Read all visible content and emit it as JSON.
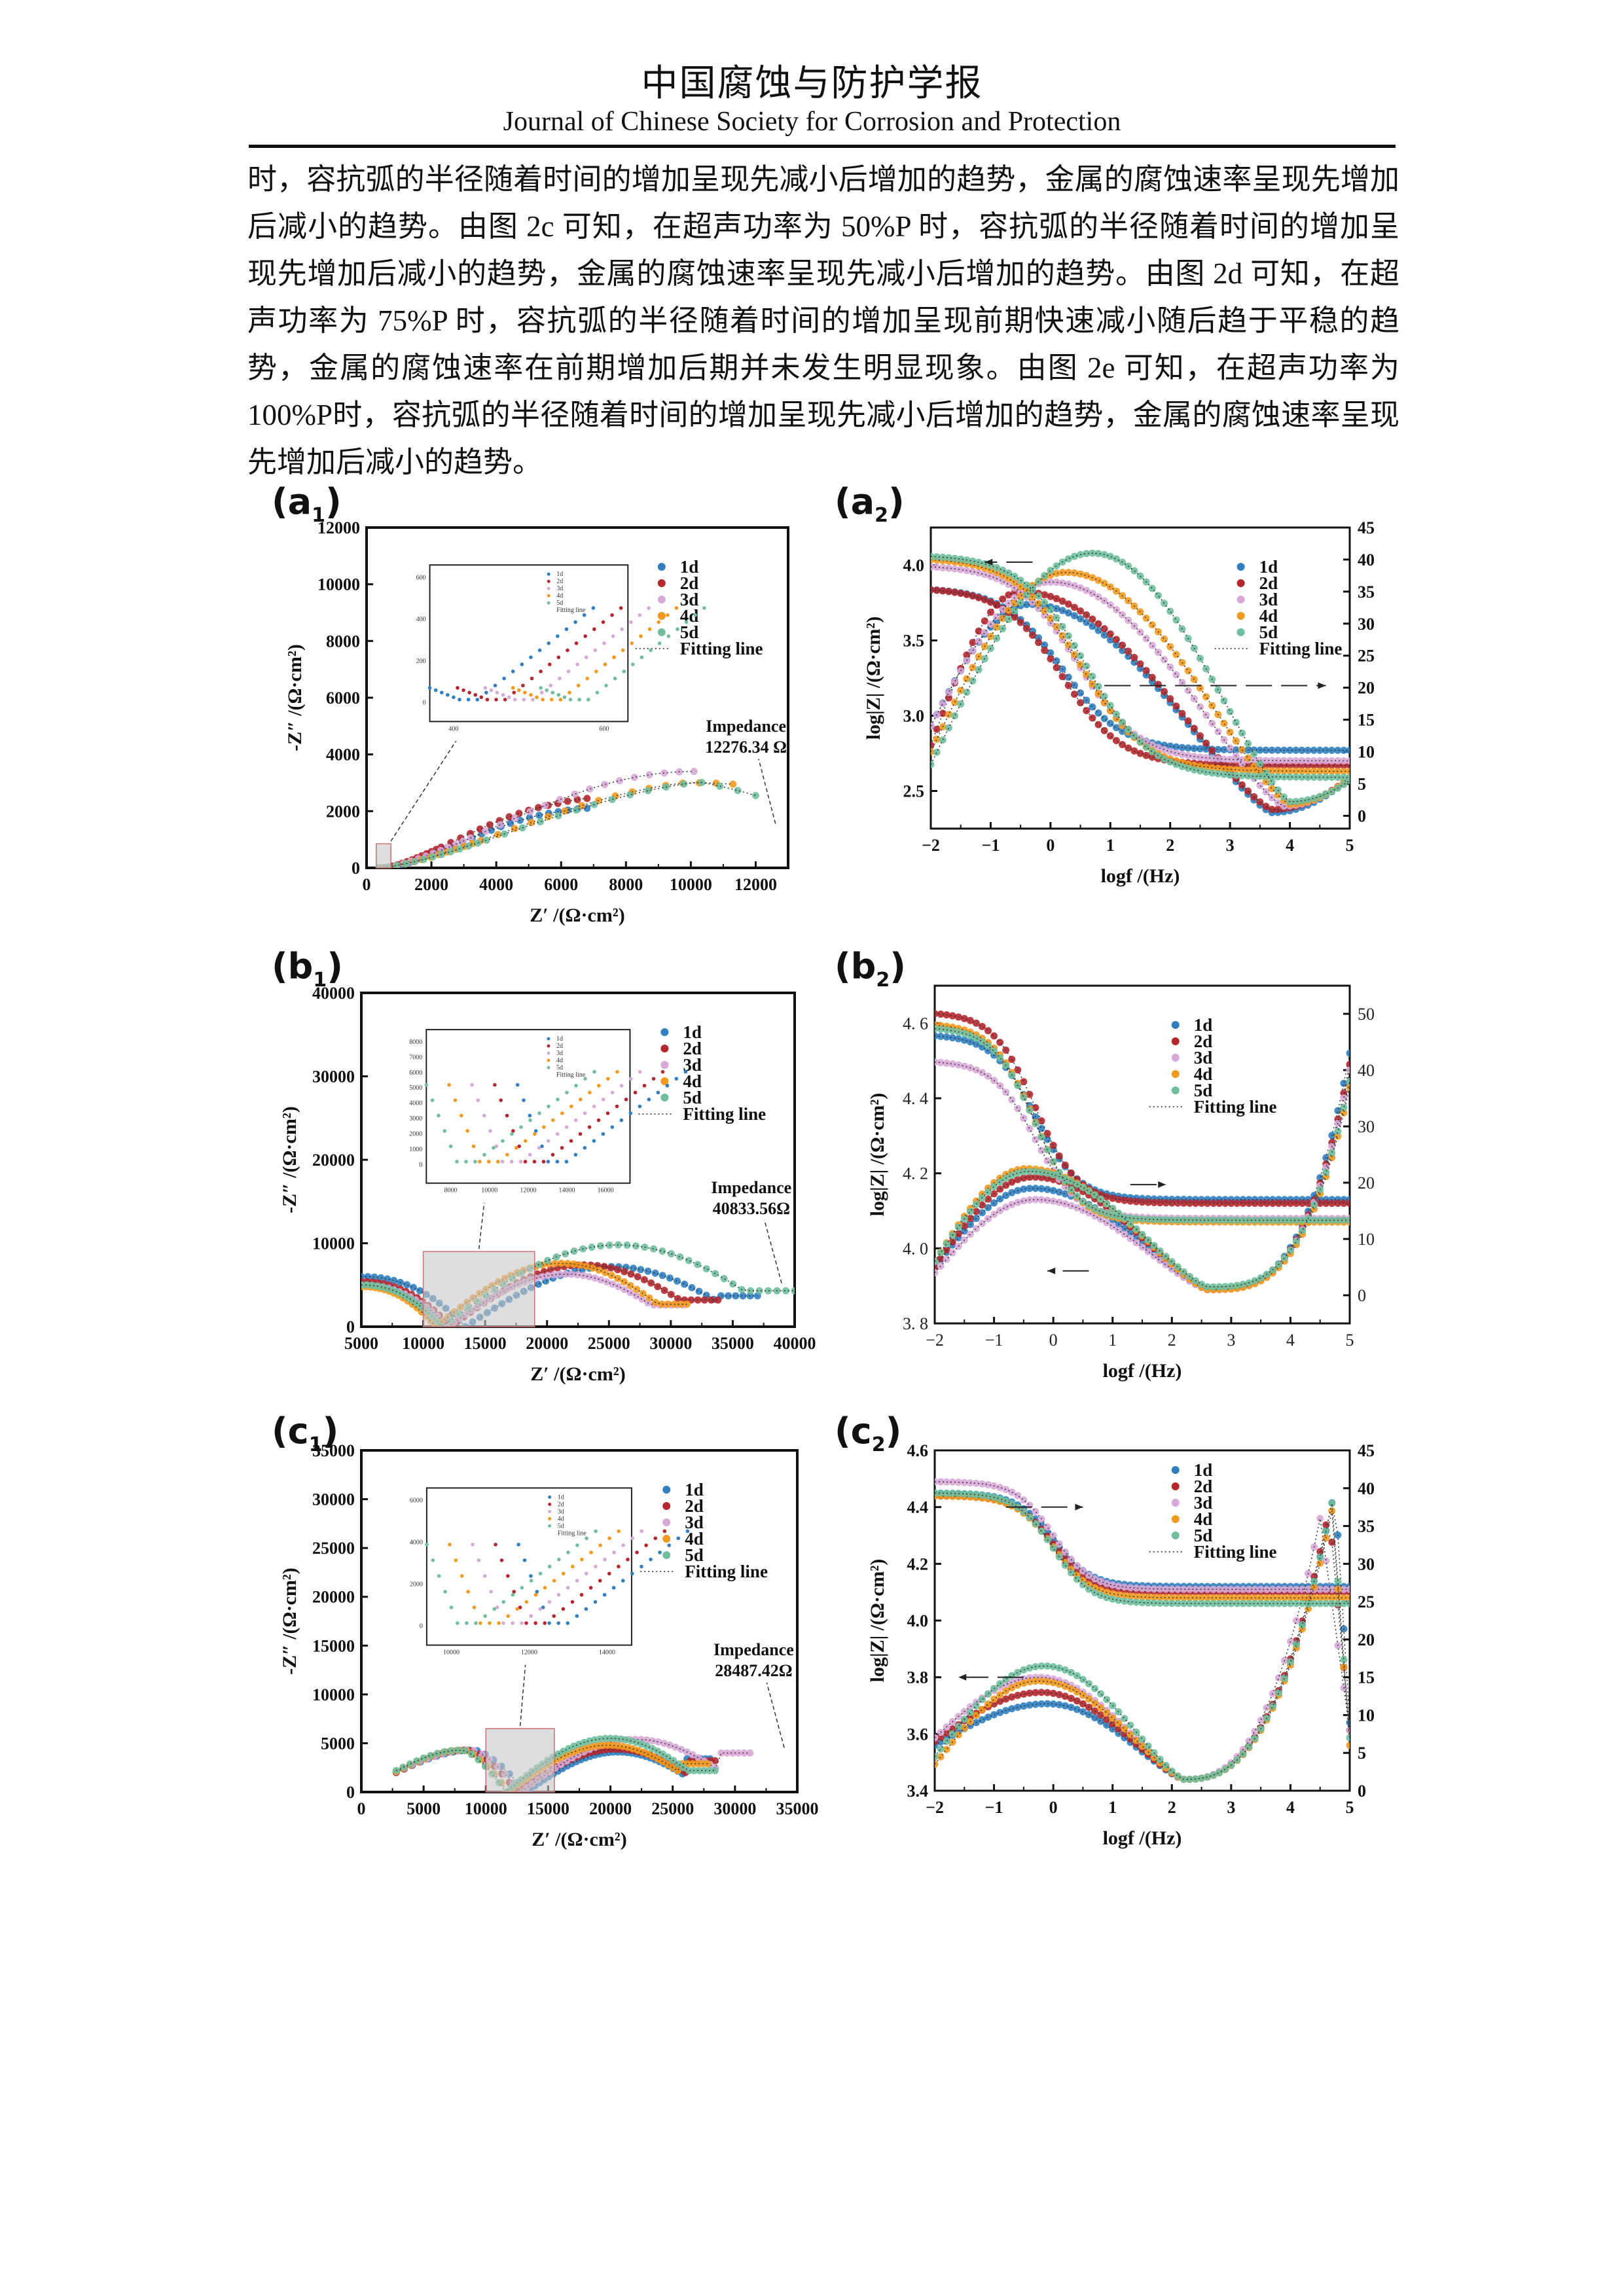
{
  "header": {
    "journal_cn": "中国腐蚀与防护学报",
    "journal_en": "Journal of Chinese Society for Corrosion and Protection"
  },
  "body_text": [
    "时，容抗弧的半径随着时间的增加呈现先减小后增加的趋势，金属的腐蚀速率呈现先增加后减小的趋势。由图 2c 可知，在超声功率为 50%P 时，容抗弧的半径随着时间的增加呈现先增加后减小的趋势，金属的腐蚀速率呈现先减小后增加的趋势。由图 2d 可知，在超声功率为 75%P 时，容抗弧的半径随着时间的增加呈现前期快速减小随后趋于平稳的趋势，金属的腐蚀速率在前期增加后期并未发生明显现象。由图 2e 可知，在超声功率为100%P时，容抗弧的半径随着时间的增加呈现先减小后增加的趋势，金属的腐蚀速率呈现 先增加后减小的趋势。"
  ],
  "series_colors": {
    "1d": "#2f7fc1",
    "2d": "#b5272d",
    "3d": "#d8a8d8",
    "4d": "#f39a1e",
    "5d": "#6fbf9f"
  },
  "legend": [
    "1d",
    "2d",
    "3d",
    "4d",
    "5d"
  ],
  "fitting_label": "Fitting line",
  "chart_data": [
    {
      "id": "a1",
      "label_main": "(a",
      "label_sub": "1",
      "label_close": ")",
      "type": "scatter",
      "kind": "nyquist",
      "xlabel": "Z′ /(Ω·cm²)",
      "ylabel": "-Z″ /(Ω·cm²)",
      "xlim": [
        0,
        13000
      ],
      "ylim": [
        0,
        12000
      ],
      "xticks": [
        0,
        2000,
        4000,
        6000,
        8000,
        10000,
        12000
      ],
      "yticks": [
        0,
        2000,
        4000,
        6000,
        8000,
        10000,
        12000
      ],
      "annotation": [
        "Impedance",
        "12276.34 Ω"
      ],
      "zoom_box": {
        "x": [
          300,
          750
        ],
        "y": [
          0,
          850
        ]
      },
      "inset": {
        "xticks": [
          "400",
          "600"
        ],
        "yticks": [
          "0",
          "200",
          "400",
          "600"
        ]
      },
      "series": [
        {
          "name": "1d",
          "arc": {
            "x0": 600,
            "x1": 6800,
            "peak": 2050,
            "end_y": 2100
          }
        },
        {
          "name": "2d",
          "arc": {
            "x0": 500,
            "x1": 6800,
            "peak": 2350,
            "end_y": 2450
          }
        },
        {
          "name": "3d",
          "arc": {
            "x0": 450,
            "x1": 10100,
            "peak": 3400,
            "end_y": 3400
          }
        },
        {
          "name": "4d",
          "arc": {
            "x0": 420,
            "x1": 11300,
            "peak": 3100,
            "end_y": 2950
          }
        },
        {
          "name": "5d",
          "arc": {
            "x0": 380,
            "x1": 12000,
            "peak": 3150,
            "end_y": 2550
          }
        }
      ]
    },
    {
      "id": "a2",
      "label_main": "(a",
      "label_sub": "2",
      "label_close": ")",
      "type": "scatter",
      "kind": "bode",
      "xlabel": "logf /(Hz)",
      "ylabel": "log|Z| /(Ω·cm²)",
      "xlim": [
        -2,
        5
      ],
      "ylim": [
        2.25,
        4.25
      ],
      "y2lim": [
        -2,
        45
      ],
      "xticks": [
        -2,
        -1,
        0,
        1,
        2,
        3,
        4,
        5
      ],
      "yticks": [
        2.5,
        3.0,
        3.5,
        4.0
      ],
      "y2ticks": [
        0,
        5,
        10,
        15,
        20,
        25,
        30,
        35,
        40,
        45
      ],
      "series": [
        {
          "name": "1d",
          "logZ": {
            "low": 3.85,
            "high": 2.77,
            "fc": 0.2,
            "w": 1.1
          },
          "phase": {
            "start": 14,
            "peak": 33,
            "peak_x": -0.35,
            "min": 0.5,
            "min_x": 3.7,
            "end": 6
          }
        },
        {
          "name": "2d",
          "logZ": {
            "low": 3.85,
            "high": 2.67,
            "fc": 0.2,
            "w": 1.1
          },
          "phase": {
            "start": 11,
            "peak": 35,
            "peak_x": -0.5,
            "min": 1,
            "min_x": 3.7,
            "end": 6
          }
        },
        {
          "name": "3d",
          "logZ": {
            "low": 4.0,
            "high": 2.7,
            "fc": 0.45,
            "w": 1.15
          },
          "phase": {
            "start": 14,
            "peak": 36.5,
            "peak_x": 0.0,
            "min": 1.5,
            "min_x": 3.9,
            "end": 6
          }
        },
        {
          "name": "4d",
          "logZ": {
            "low": 4.05,
            "high": 2.63,
            "fc": 0.5,
            "w": 1.2
          },
          "phase": {
            "start": 10,
            "peak": 38,
            "peak_x": 0.25,
            "min": 1.8,
            "min_x": 4.0,
            "end": 6
          }
        },
        {
          "name": "5d",
          "logZ": {
            "low": 4.07,
            "high": 2.59,
            "fc": 0.6,
            "w": 1.2
          },
          "phase": {
            "start": 8,
            "peak": 41,
            "peak_x": 0.7,
            "min": 2.2,
            "min_x": 4.0,
            "end": 5.5
          }
        }
      ]
    },
    {
      "id": "b1",
      "label_main": "(b",
      "label_sub": "1",
      "label_close": ")",
      "type": "scatter",
      "kind": "nyquist2",
      "xlabel": "Z′ /(Ω·cm²)",
      "ylabel": "-Z″ /(Ω·cm²)",
      "xlim": [
        5000,
        40000
      ],
      "ylim": [
        0,
        40000
      ],
      "xticks": [
        5000,
        10000,
        15000,
        20000,
        25000,
        30000,
        35000,
        40000
      ],
      "yticks": [
        0,
        10000,
        20000,
        30000,
        40000
      ],
      "annotation": [
        "Impedance",
        "40833.56Ω"
      ],
      "zoom_box": {
        "x": [
          10000,
          19000
        ],
        "y": [
          0,
          9000
        ]
      },
      "inset": {
        "xticks": [
          "8000",
          "10000",
          "12000",
          "14000",
          "16000"
        ],
        "yticks": [
          "0",
          "1000",
          "2000",
          "3000",
          "4000",
          "5000",
          "6000",
          "7000",
          "8000"
        ]
      },
      "series": [
        {
          "name": "1d",
          "min_x": 13400,
          "start_y": 6000,
          "x1": 37000,
          "peak": 7200,
          "end_y": 3700
        },
        {
          "name": "2d",
          "min_x": 12200,
          "start_y": 5400,
          "x1": 33800,
          "peak": 7400,
          "end_y": 3200
        },
        {
          "name": "3d",
          "min_x": 12000,
          "start_y": 5000,
          "x1": 31000,
          "peak": 6300,
          "end_y": 2600
        },
        {
          "name": "4d",
          "min_x": 11000,
          "start_y": 4800,
          "x1": 31300,
          "peak": 7600,
          "end_y": 2700
        },
        {
          "name": "5d",
          "min_x": 11500,
          "start_y": 5000,
          "x1": 40000,
          "peak": 9800,
          "end_y": 4300
        }
      ]
    },
    {
      "id": "b2",
      "label_main": "(b",
      "label_sub": "2",
      "label_close": ")",
      "type": "scatter",
      "kind": "bode2",
      "xlabel": "logf /(Hz)",
      "ylabel": "log|Z| /(Ω·cm²)",
      "xlim": [
        -2,
        5
      ],
      "ylim": [
        3.8,
        4.7
      ],
      "y2lim": [
        -5,
        55
      ],
      "xticks": [
        -2,
        -1,
        0,
        1,
        2,
        3,
        4,
        5
      ],
      "yticks": [
        3.8,
        4.0,
        4.2,
        4.4,
        4.6
      ],
      "y2ticks": [
        0,
        10,
        20,
        30,
        40,
        50
      ],
      "series": [
        {
          "name": "1d",
          "logZ": {
            "low": 4.57,
            "high": 4.13,
            "fc": -0.3,
            "w": 0.8
          },
          "phase": {
            "start": 5,
            "peak": 19,
            "peak_x": -0.35,
            "min": 1,
            "min_x": 2.6,
            "rise_to": 43
          }
        },
        {
          "name": "2d",
          "logZ": {
            "low": 4.63,
            "high": 4.12,
            "fc": -0.3,
            "w": 0.8
          },
          "phase": {
            "start": 5,
            "peak": 21,
            "peak_x": -0.35,
            "min": 1,
            "min_x": 2.6,
            "rise_to": 41
          }
        },
        {
          "name": "3d",
          "logZ": {
            "low": 4.5,
            "high": 4.08,
            "fc": -0.3,
            "w": 0.8
          },
          "phase": {
            "start": 4,
            "peak": 17,
            "peak_x": -0.3,
            "min": 1,
            "min_x": 2.6,
            "rise_to": 40
          }
        },
        {
          "name": "4d",
          "logZ": {
            "low": 4.6,
            "high": 4.07,
            "fc": -0.3,
            "w": 0.8
          },
          "phase": {
            "start": 6,
            "peak": 22.5,
            "peak_x": -0.45,
            "min": 1,
            "min_x": 2.6,
            "rise_to": 37
          }
        },
        {
          "name": "5d",
          "logZ": {
            "low": 4.59,
            "high": 4.075,
            "fc": -0.3,
            "w": 0.8
          },
          "phase": {
            "start": 6,
            "peak": 22,
            "peak_x": -0.4,
            "min": 1.5,
            "min_x": 2.6,
            "rise_to": 38
          }
        }
      ]
    },
    {
      "id": "c1",
      "label_main": "(c",
      "label_sub": "1",
      "label_close": ")",
      "type": "scatter",
      "kind": "nyquist2",
      "xlabel": "Z′ /(Ω·cm²)",
      "ylabel": "-Z″ /(Ω·cm²)",
      "xlim": [
        0,
        35000
      ],
      "ylim": [
        0,
        35000
      ],
      "xticks": [
        0,
        5000,
        10000,
        15000,
        20000,
        25000,
        30000,
        35000
      ],
      "yticks": [
        0,
        5000,
        10000,
        15000,
        20000,
        25000,
        30000,
        35000
      ],
      "annotation": [
        "Impedance",
        "28487.42Ω"
      ],
      "zoom_box": {
        "x": [
          10000,
          15500
        ],
        "y": [
          0,
          6500
        ]
      },
      "inset": {
        "xticks": [
          "10000",
          "12000",
          "14000"
        ],
        "yticks": [
          "0",
          "2000",
          "4000",
          "6000"
        ]
      },
      "arc1": {
        "x0": 2800,
        "x1": 12500,
        "peak": 4300
      },
      "series": [
        {
          "name": "1d",
          "min_x": 13200,
          "start_y": 2000,
          "x1": 28000,
          "peak": 4100,
          "end_y": 3400
        },
        {
          "name": "2d",
          "min_x": 12500,
          "start_y": 2000,
          "x1": 28400,
          "peak": 4400,
          "end_y": 3200
        },
        {
          "name": "3d",
          "min_x": 12800,
          "start_y": 2100,
          "x1": 31200,
          "peak": 5400,
          "end_y": 4000
        },
        {
          "name": "4d",
          "min_x": 11800,
          "start_y": 2100,
          "x1": 27800,
          "peak": 4800,
          "end_y": 2900
        },
        {
          "name": "5d",
          "min_x": 11600,
          "start_y": 2200,
          "x1": 28400,
          "peak": 5500,
          "end_y": 2200
        }
      ]
    },
    {
      "id": "c2",
      "label_main": "(c",
      "label_sub": "2",
      "label_close": ")",
      "type": "scatter",
      "kind": "bode3",
      "xlabel": "logf /(Hz)",
      "ylabel": "log|Z| /(Ω·cm²)",
      "xlim": [
        -2,
        5
      ],
      "ylim": [
        3.4,
        4.6
      ],
      "y2lim": [
        0,
        45
      ],
      "xticks": [
        -2,
        -1,
        0,
        1,
        2,
        3,
        4,
        5
      ],
      "yticks": [
        3.4,
        3.6,
        3.8,
        4.0,
        4.2,
        4.4,
        4.6
      ],
      "y2ticks": [
        0,
        5,
        10,
        15,
        20,
        25,
        30,
        35,
        40,
        45
      ],
      "series": [
        {
          "name": "1d",
          "logZ": {
            "low": 4.45,
            "high": 4.12,
            "fc": 0.0,
            "w": 0.7
          },
          "phase": {
            "start": 6,
            "peak": 11.5,
            "peak_x": -0.1,
            "min": 1.5,
            "min_x": 2.2,
            "peak2": 40,
            "peak2_x": 4.75,
            "end": 9
          }
        },
        {
          "name": "2d",
          "logZ": {
            "low": 4.44,
            "high": 4.1,
            "fc": 0.0,
            "w": 0.7
          },
          "phase": {
            "start": 6.5,
            "peak": 13,
            "peak_x": -0.2,
            "min": 1.5,
            "min_x": 2.2,
            "peak2": 37,
            "peak2_x": 4.65,
            "end": 8
          }
        },
        {
          "name": "3d",
          "logZ": {
            "low": 4.49,
            "high": 4.11,
            "fc": 0.0,
            "w": 0.7
          },
          "phase": {
            "start": 7,
            "peak": 15,
            "peak_x": -0.25,
            "min": 1.5,
            "min_x": 2.2,
            "peak2": 36,
            "peak2_x": 4.5,
            "end": 8
          }
        },
        {
          "name": "4d",
          "logZ": {
            "low": 4.44,
            "high": 4.08,
            "fc": 0.0,
            "w": 0.7
          },
          "phase": {
            "start": 3.5,
            "peak": 14.5,
            "peak_x": -0.25,
            "min": 1.5,
            "min_x": 2.2,
            "peak2": 37,
            "peak2_x": 4.7,
            "end": 6
          }
        },
        {
          "name": "5d",
          "logZ": {
            "low": 4.45,
            "high": 4.06,
            "fc": 0.0,
            "w": 0.7
          },
          "phase": {
            "start": 4.5,
            "peak": 16.5,
            "peak_x": -0.15,
            "min": 1.5,
            "min_x": 2.2,
            "peak2": 38,
            "peak2_x": 4.7,
            "end": 7
          }
        }
      ]
    }
  ]
}
